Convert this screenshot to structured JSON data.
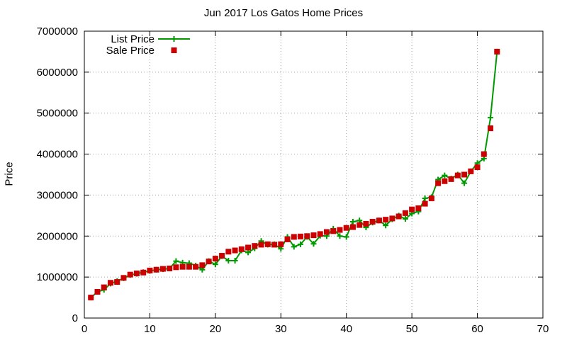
{
  "chart_data": {
    "type": "line",
    "title": "Jun 2017 Los Gatos Home Prices",
    "xlabel": "",
    "ylabel": "Price",
    "xlim": [
      0,
      70
    ],
    "ylim": [
      0,
      7000000
    ],
    "x_ticks": [
      0,
      10,
      20,
      30,
      40,
      50,
      60,
      70
    ],
    "y_ticks": [
      0,
      1000000,
      2000000,
      3000000,
      4000000,
      5000000,
      6000000,
      7000000
    ],
    "grid": true,
    "legend_position": "top-left",
    "series": [
      {
        "name": "List Price",
        "style": "line-plus",
        "color": "#009900",
        "points": [
          [
            1,
            500000
          ],
          [
            2,
            640000
          ],
          [
            3,
            690000
          ],
          [
            4,
            840000
          ],
          [
            5,
            900000
          ],
          [
            6,
            970000
          ],
          [
            7,
            1050000
          ],
          [
            8,
            1080000
          ],
          [
            9,
            1120000
          ],
          [
            10,
            1150000
          ],
          [
            11,
            1180000
          ],
          [
            12,
            1190000
          ],
          [
            13,
            1210000
          ],
          [
            14,
            1390000
          ],
          [
            15,
            1350000
          ],
          [
            16,
            1340000
          ],
          [
            17,
            1280000
          ],
          [
            18,
            1180000
          ],
          [
            19,
            1390000
          ],
          [
            20,
            1310000
          ],
          [
            21,
            1510000
          ],
          [
            22,
            1400000
          ],
          [
            23,
            1400000
          ],
          [
            24,
            1650000
          ],
          [
            25,
            1600000
          ],
          [
            26,
            1700000
          ],
          [
            27,
            1880000
          ],
          [
            28,
            1790000
          ],
          [
            29,
            1800000
          ],
          [
            30,
            1690000
          ],
          [
            31,
            1980000
          ],
          [
            32,
            1740000
          ],
          [
            33,
            1800000
          ],
          [
            34,
            1980000
          ],
          [
            35,
            1810000
          ],
          [
            36,
            2010000
          ],
          [
            37,
            2000000
          ],
          [
            38,
            2180000
          ],
          [
            39,
            2000000
          ],
          [
            40,
            1980000
          ],
          [
            41,
            2350000
          ],
          [
            42,
            2380000
          ],
          [
            43,
            2210000
          ],
          [
            44,
            2330000
          ],
          [
            45,
            2380000
          ],
          [
            46,
            2260000
          ],
          [
            47,
            2410000
          ],
          [
            48,
            2500000
          ],
          [
            49,
            2420000
          ],
          [
            50,
            2550000
          ],
          [
            51,
            2600000
          ],
          [
            52,
            2920000
          ],
          [
            53,
            2950000
          ],
          [
            54,
            3380000
          ],
          [
            55,
            3480000
          ],
          [
            56,
            3400000
          ],
          [
            57,
            3500000
          ],
          [
            58,
            3290000
          ],
          [
            59,
            3580000
          ],
          [
            60,
            3780000
          ],
          [
            61,
            3890000
          ],
          [
            62,
            4890000
          ],
          [
            63,
            6500000
          ]
        ]
      },
      {
        "name": "Sale Price",
        "style": "square-points",
        "color": "#cc0000",
        "points": [
          [
            1,
            500000
          ],
          [
            2,
            640000
          ],
          [
            3,
            750000
          ],
          [
            4,
            860000
          ],
          [
            5,
            880000
          ],
          [
            6,
            980000
          ],
          [
            7,
            1060000
          ],
          [
            8,
            1090000
          ],
          [
            9,
            1110000
          ],
          [
            10,
            1160000
          ],
          [
            11,
            1180000
          ],
          [
            12,
            1200000
          ],
          [
            13,
            1210000
          ],
          [
            14,
            1240000
          ],
          [
            15,
            1250000
          ],
          [
            16,
            1250000
          ],
          [
            17,
            1250000
          ],
          [
            18,
            1290000
          ],
          [
            19,
            1380000
          ],
          [
            20,
            1450000
          ],
          [
            21,
            1520000
          ],
          [
            22,
            1620000
          ],
          [
            23,
            1650000
          ],
          [
            24,
            1680000
          ],
          [
            25,
            1720000
          ],
          [
            26,
            1760000
          ],
          [
            27,
            1790000
          ],
          [
            28,
            1800000
          ],
          [
            29,
            1790000
          ],
          [
            30,
            1800000
          ],
          [
            31,
            1920000
          ],
          [
            32,
            1980000
          ],
          [
            33,
            1990000
          ],
          [
            34,
            2000000
          ],
          [
            35,
            2020000
          ],
          [
            36,
            2050000
          ],
          [
            37,
            2100000
          ],
          [
            38,
            2120000
          ],
          [
            39,
            2150000
          ],
          [
            40,
            2200000
          ],
          [
            41,
            2220000
          ],
          [
            42,
            2270000
          ],
          [
            43,
            2300000
          ],
          [
            44,
            2350000
          ],
          [
            45,
            2380000
          ],
          [
            46,
            2400000
          ],
          [
            47,
            2430000
          ],
          [
            48,
            2480000
          ],
          [
            49,
            2560000
          ],
          [
            50,
            2650000
          ],
          [
            51,
            2680000
          ],
          [
            52,
            2790000
          ],
          [
            53,
            2920000
          ],
          [
            54,
            3290000
          ],
          [
            55,
            3340000
          ],
          [
            56,
            3390000
          ],
          [
            57,
            3480000
          ],
          [
            58,
            3500000
          ],
          [
            59,
            3580000
          ],
          [
            60,
            3680000
          ],
          [
            61,
            4000000
          ],
          [
            62,
            4630000
          ],
          [
            63,
            6500000
          ]
        ]
      }
    ]
  }
}
